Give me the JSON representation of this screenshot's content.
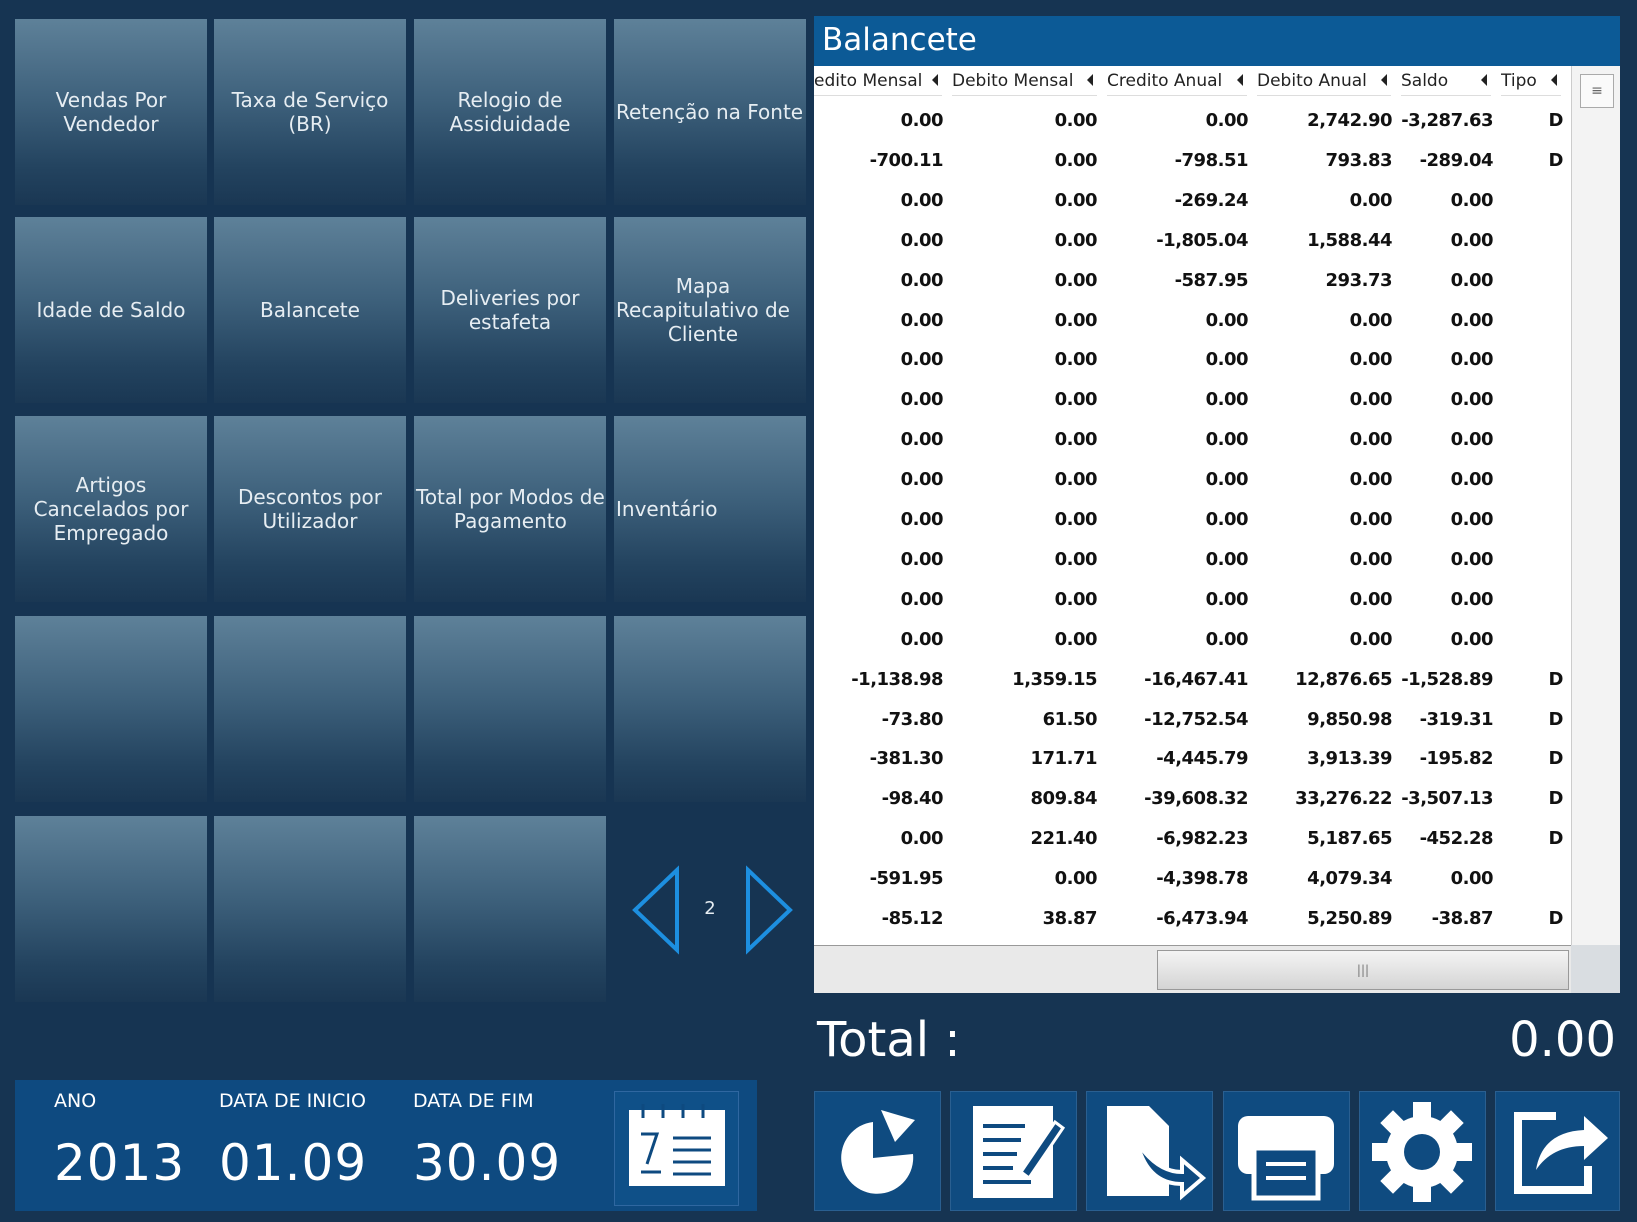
{
  "tiles": [
    "Vendas Por\nVendedor",
    "Taxa de Serviço\n(BR)",
    "Relogio de\nAssiduidade",
    "Retenção na Fonte",
    "Idade de Saldo",
    "Balancete",
    "Deliveries por\nestafeta",
    "Mapa\nRecapitulativo de\nCliente",
    "Artigos\nCancelados por\nEmpregado",
    "Descontos por\nUtilizador",
    "Total por Modos de\nPagamento",
    "Inventário"
  ],
  "page_number": "2",
  "panel": {
    "title": "Balancete",
    "columns": [
      "edito Mensal",
      "Debito Mensal",
      "Credito Anual",
      "Debito Anual",
      "Saldo",
      "Tipo"
    ],
    "rows": [
      [
        "0.00",
        "0.00",
        "0.00",
        "2,742.90",
        "-3,287.63",
        "D"
      ],
      [
        "-700.11",
        "0.00",
        "-798.51",
        "793.83",
        "-289.04",
        "D"
      ],
      [
        "0.00",
        "0.00",
        "-269.24",
        "0.00",
        "0.00",
        null
      ],
      [
        "0.00",
        "0.00",
        "-1,805.04",
        "1,588.44",
        "0.00",
        null
      ],
      [
        "0.00",
        "0.00",
        "-587.95",
        "293.73",
        "0.00",
        null
      ],
      [
        "0.00",
        "0.00",
        "0.00",
        "0.00",
        "0.00",
        null
      ],
      [
        "0.00",
        "0.00",
        "0.00",
        "0.00",
        "0.00",
        null
      ],
      [
        "0.00",
        "0.00",
        "0.00",
        "0.00",
        "0.00",
        null
      ],
      [
        "0.00",
        "0.00",
        "0.00",
        "0.00",
        "0.00",
        null
      ],
      [
        "0.00",
        "0.00",
        "0.00",
        "0.00",
        "0.00",
        null
      ],
      [
        "0.00",
        "0.00",
        "0.00",
        "0.00",
        "0.00",
        null
      ],
      [
        "0.00",
        "0.00",
        "0.00",
        "0.00",
        "0.00",
        null
      ],
      [
        "0.00",
        "0.00",
        "0.00",
        "0.00",
        "0.00",
        null
      ],
      [
        "0.00",
        "0.00",
        "0.00",
        "0.00",
        "0.00",
        null
      ],
      [
        "-1,138.98",
        "1,359.15",
        "-16,467.41",
        "12,876.65",
        "-1,528.89",
        "D"
      ],
      [
        "-73.80",
        "61.50",
        "-12,752.54",
        "9,850.98",
        "-319.31",
        "D"
      ],
      [
        "-381.30",
        "171.71",
        "-4,445.79",
        "3,913.39",
        "-195.82",
        "D"
      ],
      [
        "-98.40",
        "809.84",
        "-39,608.32",
        "33,276.22",
        "-3,507.13",
        "D"
      ],
      [
        "0.00",
        "221.40",
        "-6,982.23",
        "5,187.65",
        "-452.28",
        "D"
      ],
      [
        "-591.95",
        "0.00",
        "-4,398.78",
        "4,079.34",
        "0.00",
        null
      ],
      [
        "-85.12",
        "38.87",
        "-6,473.94",
        "5,250.89",
        "-38.87",
        "D"
      ]
    ]
  },
  "total": {
    "label": "Total :",
    "value": "0.00"
  },
  "dates": [
    {
      "label": "ANO",
      "value": "2013"
    },
    {
      "label": "DATA DE INICIO",
      "value": "01.09"
    },
    {
      "label": "DATA DE FIM",
      "value": "30.09"
    }
  ]
}
